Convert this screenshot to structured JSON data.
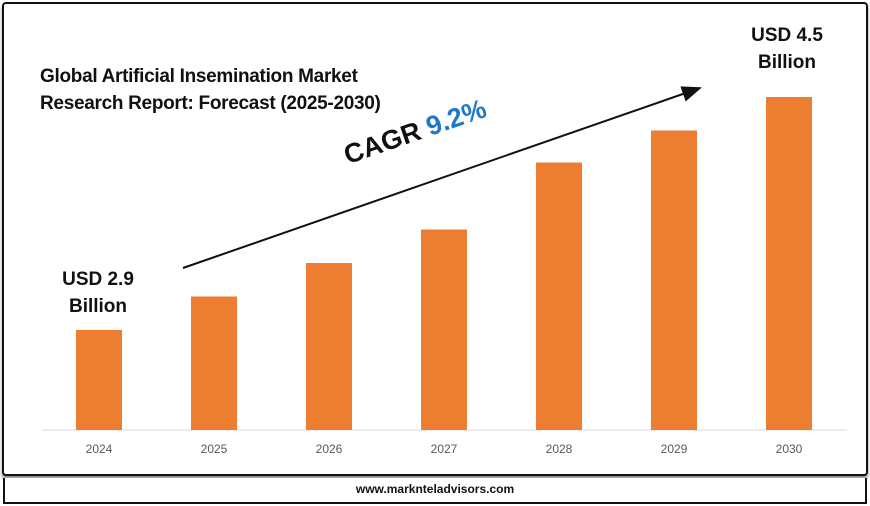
{
  "chart_data": {
    "type": "bar",
    "title": "Global Artificial Insemination Market Research Report: Forecast (2025-2030)",
    "title_lines": [
      "Global Artificial Insemination Market",
      "Research Report: Forecast (2025-2030)"
    ],
    "categories": [
      "2024",
      "2025",
      "2026",
      "2027",
      "2028",
      "2029",
      "2030"
    ],
    "values": [
      2.9,
      3.13,
      3.36,
      3.59,
      4.05,
      4.27,
      4.5
    ],
    "unit": "USD Billion",
    "xlabel": "",
    "ylabel": "",
    "grid": false,
    "bar_color": "#ed7d31",
    "annotations": {
      "start_label": [
        "USD 2.9",
        "Billion"
      ],
      "end_label": [
        "USD 4.5",
        "Billion"
      ],
      "cagr_label": "CAGR",
      "cagr_value": "9.2%",
      "cagr_color": "#1f78c8"
    }
  },
  "footer": {
    "website": "www.marknteladvisors.com"
  }
}
